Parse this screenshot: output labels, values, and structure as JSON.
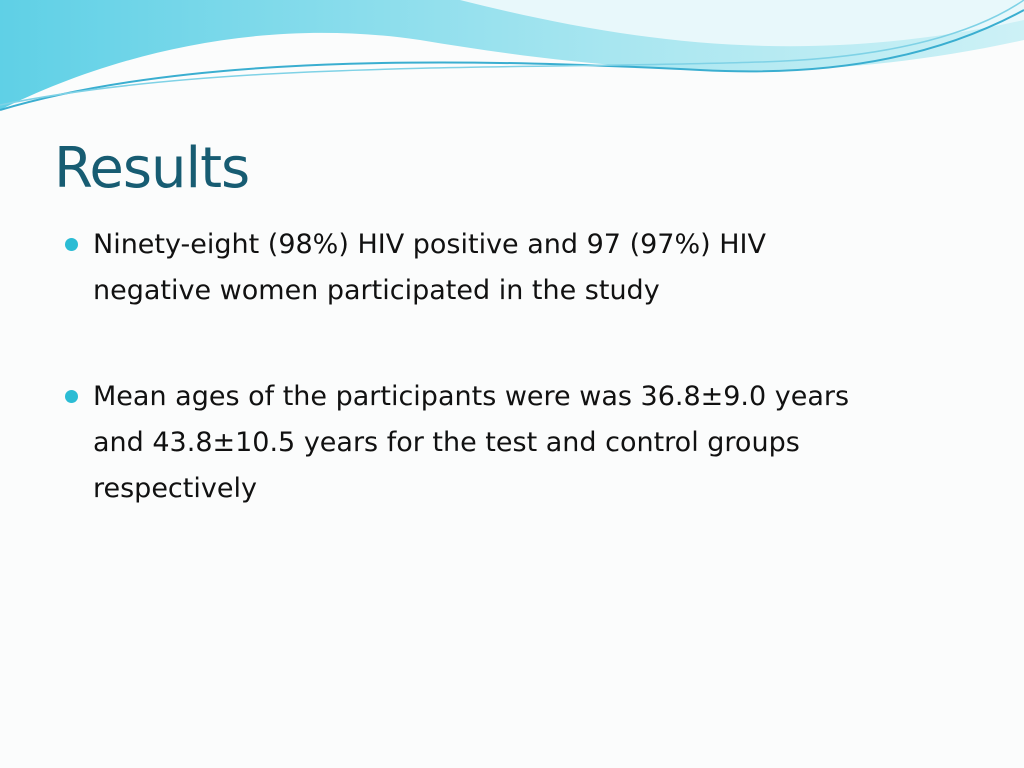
{
  "title": "Results",
  "bullets": [
    {
      "lines": [
        "Ninety-eight (98%) HIV positive and 97 (97%) HIV",
        "negative women participated in the study"
      ]
    },
    {
      "lines": [
        "Mean ages of the participants were was 36.8±9.0 years",
        "and 43.8±10.5 years for the test and control groups",
        "respectively"
      ]
    }
  ]
}
